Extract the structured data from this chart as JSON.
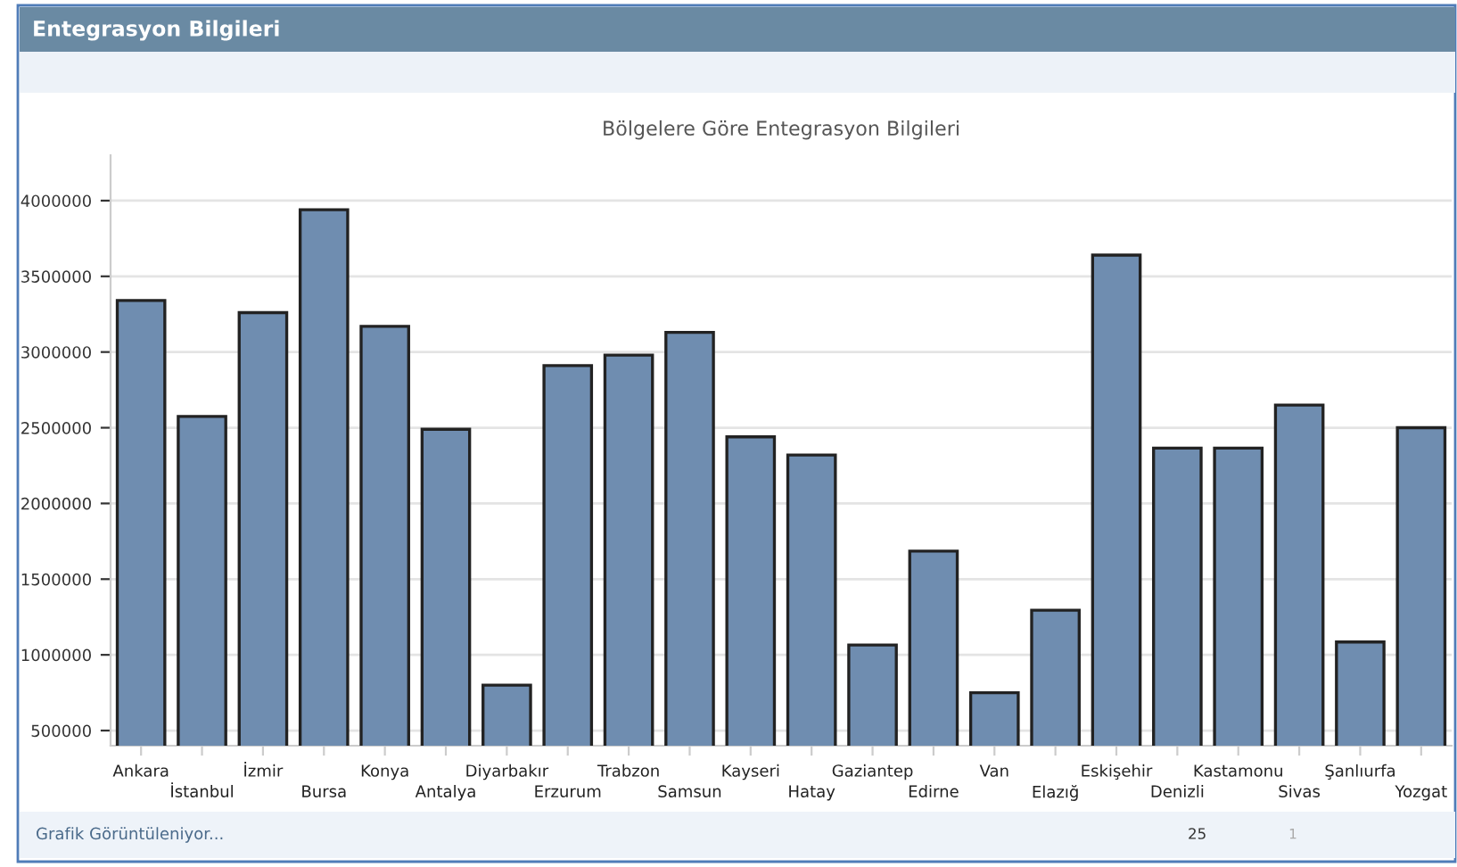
{
  "chart_data": {
    "type": "bar",
    "title": "Entegrasyon Bilgileri",
    "subtitle": "Bölgelere Göre Entegrasyon Bilgileri",
    "categories": [
      "Ankara",
      "İstanbul",
      "İzmir",
      "Bursa",
      "Konya",
      "Antalya",
      "Diyarbakır",
      "Erzurum",
      "Trabzon",
      "Samsun",
      "Kayseri",
      "Hatay",
      "Gaziantep",
      "Edirne",
      "Van",
      "Elazığ",
      "Eskişehir",
      "Denizli",
      "Kastamonu",
      "Sivas",
      "Şanlıurfa",
      "Yozgat"
    ],
    "values": [
      3340000,
      2575000,
      3260000,
      3940000,
      3170000,
      2490000,
      800000,
      2910000,
      2980000,
      3130000,
      2440000,
      2320000,
      1065000,
      1685000,
      750000,
      1295000,
      3640000,
      2365000,
      2365000,
      2650000,
      1085000,
      2500000
    ],
    "color": "#6f8db0",
    "ylim": [
      400000,
      4300000
    ],
    "yticks": [
      500000,
      1000000,
      1500000,
      2000000,
      2500000,
      3000000,
      3500000,
      4000000
    ],
    "grid": "y",
    "annotations": [
      "Grafik Görüntüleniyor...",
      "25",
      "1"
    ]
  }
}
